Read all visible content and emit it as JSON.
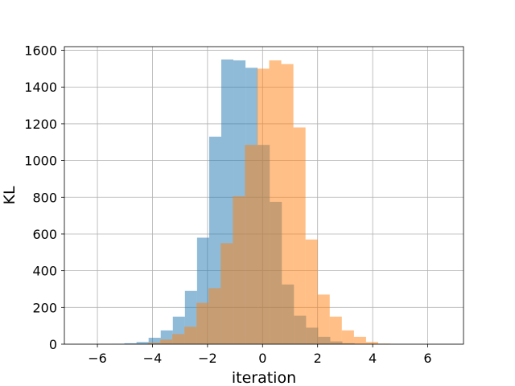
{
  "chart_data": {
    "type": "bar",
    "subtype": "overlapping-histogram",
    "title": "",
    "xlabel": "iteration",
    "ylabel": "KL",
    "xlim": [
      -7.2,
      7.3
    ],
    "ylim": [
      0,
      1620
    ],
    "xticks": [
      -6,
      -4,
      -2,
      0,
      2,
      4,
      6
    ],
    "xtick_labels": [
      "−6",
      "−4",
      "−2",
      "0",
      "2",
      "4",
      "6"
    ],
    "yticks": [
      0,
      200,
      400,
      600,
      800,
      1000,
      1200,
      1400,
      1600
    ],
    "ytick_labels": [
      "0",
      "200",
      "400",
      "600",
      "800",
      "1000",
      "1200",
      "1400",
      "1600"
    ],
    "grid": true,
    "series": [
      {
        "color": "#1f77b4",
        "opacity": 0.5,
        "bin_edges": [
          -5.9,
          -5.46,
          -5.02,
          -4.58,
          -4.14,
          -3.7,
          -3.26,
          -2.82,
          -2.38,
          -1.94,
          -1.5,
          -1.06,
          -0.62,
          -0.18
        ],
        "values": [
          1,
          2,
          5,
          12,
          35,
          75,
          150,
          290,
          580,
          1130,
          1550,
          1545,
          1505
        ],
        "stacked_with_next": [
          {
            "bin_edges": [
              -0.18,
              0.26,
              0.7,
              1.14,
              1.58,
              2.02,
              2.46,
              2.9,
              3.34
            ],
            "values": [
              1085,
              775,
              325,
              155,
              90,
              40,
              15,
              5
            ]
          }
        ]
      },
      {
        "color": "#ff7f0e",
        "opacity": 0.5,
        "bin_edges": [
          -4.6,
          -4.16,
          -3.72,
          -3.28,
          -2.84,
          -2.4,
          -1.96,
          -1.52,
          -1.08,
          -0.64,
          -0.2,
          0.24,
          0.68,
          1.12,
          1.56,
          2.0,
          2.44,
          2.88,
          3.32,
          3.76,
          4.2,
          4.64
        ],
        "values": [
          2,
          8,
          25,
          55,
          95,
          225,
          305,
          550,
          805,
          1085,
          1500,
          1545,
          1525,
          1180,
          570,
          270,
          150,
          75,
          40,
          12,
          3
        ]
      }
    ]
  }
}
